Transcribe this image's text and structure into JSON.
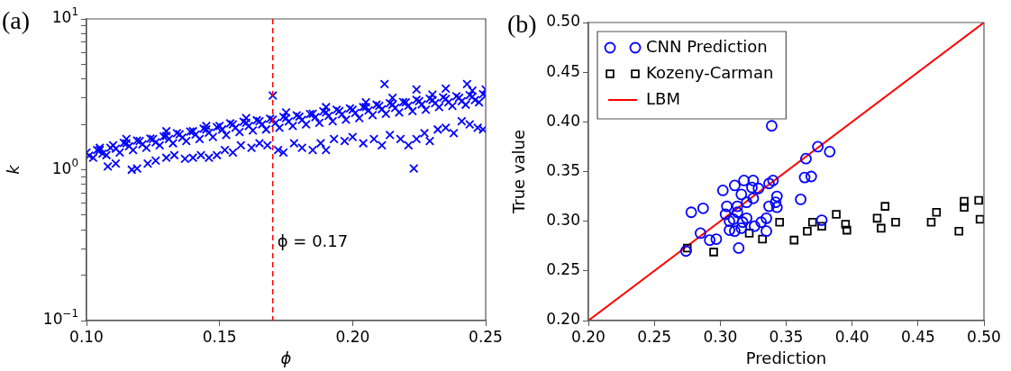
{
  "chart_data": [
    {
      "type": "scatter",
      "title": "(a)",
      "xlabel": "ϕ",
      "ylabel": "k",
      "log": "y",
      "marker": "cross",
      "grid": false,
      "legend": false,
      "xlim": [
        0.1,
        0.25
      ],
      "xticks": [
        {
          "value": 0.1,
          "label": "0.10"
        },
        {
          "value": 0.15,
          "label": "0.15"
        },
        {
          "value": 0.2,
          "label": "0.20"
        },
        {
          "value": 0.25,
          "label": "0.25"
        }
      ],
      "ylim": [
        0.1,
        10
      ],
      "yticks": [
        {
          "value": 0.1,
          "label": "10$^{−1}$"
        },
        {
          "value": 0.2,
          "label": null
        },
        {
          "value": 0.3,
          "label": null
        },
        {
          "value": 0.4,
          "label": null
        },
        {
          "value": 0.5,
          "label": null
        },
        {
          "value": 0.6,
          "label": null
        },
        {
          "value": 0.7,
          "label": null
        },
        {
          "value": 0.8,
          "label": null
        },
        {
          "value": 0.9,
          "label": null
        },
        {
          "value": 1,
          "label": "10$^{0}$"
        },
        {
          "value": 2,
          "label": null
        },
        {
          "value": 3,
          "label": null
        },
        {
          "value": 4,
          "label": null
        },
        {
          "value": 5,
          "label": null
        },
        {
          "value": 6,
          "label": null
        },
        {
          "value": 7,
          "label": null
        },
        {
          "value": 8,
          "label": null
        },
        {
          "value": 9,
          "label": null
        },
        {
          "value": 10,
          "label": "10$^{1}$"
        }
      ],
      "ref_lines": [
        {
          "axis": "x",
          "value": 0.17,
          "label": "ϕ = 0.17",
          "color": "#ff0000",
          "line_style": "dashed"
        }
      ],
      "series": [
        {
          "color": "#0000ff",
          "x": [
            0.1,
            0.105,
            0.11,
            0.115,
            0.12,
            0.125,
            0.13,
            0.135,
            0.14,
            0.145,
            0.15,
            0.155,
            0.16,
            0.165,
            0.17,
            0.175,
            0.18,
            0.185,
            0.19,
            0.195,
            0.2,
            0.205,
            0.21,
            0.215,
            0.22,
            0.225,
            0.23,
            0.235,
            0.24,
            0.245,
            0.25,
            0.1025,
            0.1075,
            0.1125,
            0.1175,
            0.1225,
            0.1275,
            0.1325,
            0.1375,
            0.1425,
            0.1475,
            0.1525,
            0.1575,
            0.1625,
            0.1675,
            0.1725,
            0.1775,
            0.1825,
            0.1875,
            0.1925,
            0.1975,
            0.2025,
            0.2075,
            0.2125,
            0.2175,
            0.2225,
            0.2275,
            0.2325,
            0.2375,
            0.2425,
            0.2475,
            0.108,
            0.111,
            0.117,
            0.119,
            0.123,
            0.126,
            0.13,
            0.133,
            0.137,
            0.14,
            0.143,
            0.146,
            0.149,
            0.152,
            0.155,
            0.158,
            0.162,
            0.165,
            0.168,
            0.172,
            0.174,
            0.178,
            0.181,
            0.185,
            0.188,
            0.19,
            0.193,
            0.197,
            0.2,
            0.204,
            0.208,
            0.211,
            0.214,
            0.218,
            0.221,
            0.223,
            0.224,
            0.227,
            0.229,
            0.232,
            0.235,
            0.238,
            0.241,
            0.244,
            0.247,
            0.249,
            0.17,
            0.212,
            0.224,
            0.235,
            0.243,
            0.25,
            0.105,
            0.115,
            0.13,
            0.145,
            0.16,
            0.175,
            0.19,
            0.205,
            0.215,
            0.23,
            0.245,
            0.101,
            0.106,
            0.111,
            0.116,
            0.121,
            0.126,
            0.131,
            0.136,
            0.141,
            0.146,
            0.151,
            0.156,
            0.161,
            0.166,
            0.171,
            0.176,
            0.181,
            0.186,
            0.191,
            0.196,
            0.201,
            0.206,
            0.211,
            0.216,
            0.221,
            0.226,
            0.231,
            0.236,
            0.241,
            0.246,
            0.104,
            0.109,
            0.114,
            0.119,
            0.124,
            0.129,
            0.134,
            0.139,
            0.144,
            0.149,
            0.154,
            0.159,
            0.164,
            0.169,
            0.174,
            0.179,
            0.184,
            0.189,
            0.194,
            0.199,
            0.204,
            0.209,
            0.214,
            0.219,
            0.224,
            0.229,
            0.234,
            0.239,
            0.244,
            0.249
          ],
          "values": [
            1.3,
            1.35,
            1.45,
            1.5,
            1.55,
            1.6,
            1.68,
            1.72,
            1.8,
            1.85,
            1.95,
            2.0,
            2.05,
            2.1,
            2.15,
            2.2,
            2.25,
            2.35,
            2.4,
            2.45,
            2.5,
            2.6,
            2.65,
            2.7,
            2.8,
            2.85,
            2.9,
            2.95,
            3.0,
            3.05,
            3.1,
            1.2,
            1.25,
            1.3,
            1.35,
            1.4,
            1.45,
            1.5,
            1.55,
            1.6,
            1.65,
            1.7,
            1.78,
            1.82,
            1.85,
            1.9,
            1.95,
            2.0,
            2.05,
            2.1,
            2.15,
            2.2,
            2.3,
            2.35,
            2.4,
            2.45,
            2.5,
            2.6,
            2.65,
            2.7,
            2.8,
            1.05,
            1.1,
            1.0,
            1.02,
            1.1,
            1.15,
            1.2,
            1.25,
            1.18,
            1.2,
            1.25,
            1.2,
            1.25,
            1.35,
            1.3,
            1.45,
            1.4,
            1.5,
            1.45,
            1.35,
            1.3,
            1.5,
            1.4,
            1.35,
            1.5,
            1.35,
            1.6,
            1.55,
            1.65,
            1.5,
            1.6,
            1.45,
            1.7,
            1.6,
            1.45,
            1.02,
            1.6,
            1.75,
            1.55,
            1.85,
            1.9,
            1.75,
            2.1,
            2.0,
            1.9,
            1.85,
            3.1,
            3.7,
            3.4,
            3.45,
            3.7,
            3.4,
            1.4,
            1.6,
            1.8,
            1.95,
            2.2,
            2.4,
            2.6,
            2.8,
            3.0,
            3.15,
            3.35,
            1.24,
            1.28,
            1.38,
            1.43,
            1.47,
            1.52,
            1.6,
            1.63,
            1.71,
            1.76,
            1.85,
            1.9,
            1.95,
            2.0,
            2.04,
            2.09,
            2.14,
            2.23,
            2.28,
            2.33,
            2.38,
            2.47,
            2.52,
            2.57,
            2.66,
            2.71,
            2.76,
            2.8,
            2.85,
            2.9,
            1.35,
            1.4,
            1.51,
            1.56,
            1.61,
            1.66,
            1.75,
            1.79,
            1.87,
            1.92,
            2.03,
            2.08,
            2.13,
            2.18,
            2.24,
            2.29,
            2.34,
            2.44,
            2.5,
            2.55,
            2.6,
            2.7,
            2.76,
            2.81,
            2.91,
            2.96,
            3.02,
            3.07,
            3.12,
            3.17
          ]
        }
      ]
    },
    {
      "type": "scatter",
      "title": "(b)",
      "xlabel": "Prediction",
      "ylabel": "True value",
      "grid": false,
      "legend": "top left",
      "xlim": [
        0.2,
        0.5
      ],
      "xticks": [
        {
          "value": 0.2,
          "label": "0.20"
        },
        {
          "value": 0.25,
          "label": "0.25"
        },
        {
          "value": 0.3,
          "label": "0.30"
        },
        {
          "value": 0.35,
          "label": "0.35"
        },
        {
          "value": 0.4,
          "label": "0.40"
        },
        {
          "value": 0.45,
          "label": "0.45"
        },
        {
          "value": 0.5,
          "label": "0.50"
        }
      ],
      "ylim": [
        0.2,
        0.5
      ],
      "yticks": [
        {
          "value": 0.2,
          "label": "0.20"
        },
        {
          "value": 0.25,
          "label": "0.25"
        },
        {
          "value": 0.3,
          "label": "0.30"
        },
        {
          "value": 0.35,
          "label": "0.35"
        },
        {
          "value": 0.4,
          "label": "0.40"
        },
        {
          "value": 0.45,
          "label": "0.45"
        },
        {
          "value": 0.5,
          "label": "0.50"
        }
      ],
      "series": [
        {
          "name": "CNN Prediction",
          "color": "#0000ff",
          "marker": "circle",
          "x": [
            0.339,
            0.374,
            0.383,
            0.365,
            0.364,
            0.369,
            0.361,
            0.377,
            0.318,
            0.325,
            0.311,
            0.302,
            0.324,
            0.329,
            0.337,
            0.34,
            0.316,
            0.325,
            0.32,
            0.343,
            0.342,
            0.343,
            0.337,
            0.305,
            0.313,
            0.287,
            0.278,
            0.304,
            0.313,
            0.307,
            0.31,
            0.32,
            0.317,
            0.335,
            0.331,
            0.326,
            0.316,
            0.307,
            0.311,
            0.335,
            0.285,
            0.292,
            0.297,
            0.314,
            0.274
          ],
          "values": [
            0.396,
            0.375,
            0.37,
            0.363,
            0.344,
            0.345,
            0.322,
            0.301,
            0.341,
            0.341,
            0.336,
            0.331,
            0.334,
            0.333,
            0.338,
            0.341,
            0.327,
            0.323,
            0.319,
            0.325,
            0.319,
            0.314,
            0.315,
            0.315,
            0.315,
            0.313,
            0.309,
            0.307,
            0.309,
            0.3,
            0.302,
            0.303,
            0.299,
            0.303,
            0.299,
            0.295,
            0.293,
            0.291,
            0.29,
            0.29,
            0.288,
            0.281,
            0.282,
            0.273,
            0.27
          ]
        },
        {
          "name": "Kozeny-Carman",
          "color": "#000000",
          "marker": "square",
          "x": [
            0.275,
            0.295,
            0.322,
            0.332,
            0.345,
            0.356,
            0.366,
            0.37,
            0.377,
            0.388,
            0.395,
            0.396,
            0.419,
            0.422,
            0.425,
            0.433,
            0.46,
            0.464,
            0.481,
            0.485,
            0.485,
            0.496,
            0.497
          ],
          "values": [
            0.273,
            0.269,
            0.288,
            0.282,
            0.299,
            0.281,
            0.29,
            0.299,
            0.295,
            0.307,
            0.297,
            0.291,
            0.303,
            0.293,
            0.315,
            0.299,
            0.299,
            0.309,
            0.29,
            0.314,
            0.32,
            0.321,
            0.302
          ]
        },
        {
          "name": "LBM",
          "type": "line",
          "color": "#ff0000",
          "marker": "none",
          "line_style": "solid",
          "x": [
            0.2,
            0.5
          ],
          "values": [
            0.2,
            0.5
          ]
        }
      ]
    }
  ]
}
